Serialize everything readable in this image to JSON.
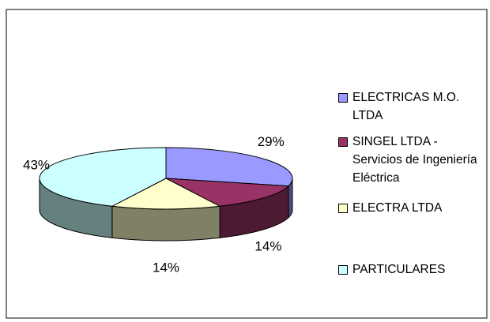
{
  "chart_data": {
    "type": "pie3d",
    "categories": [
      "ELECTRICAS M.O. LTDA",
      "SINGEL LTDA - Servicios de Ingeniería Eléctrica",
      "ELECTRA LTDA",
      "PARTICULARES"
    ],
    "values": [
      29,
      14,
      14,
      43
    ],
    "value_labels": [
      "29%",
      "14%",
      "14%",
      "43%"
    ],
    "colors": [
      "#9999ff",
      "#993366",
      "#ffffcc",
      "#ccffff"
    ],
    "legend": "right"
  }
}
